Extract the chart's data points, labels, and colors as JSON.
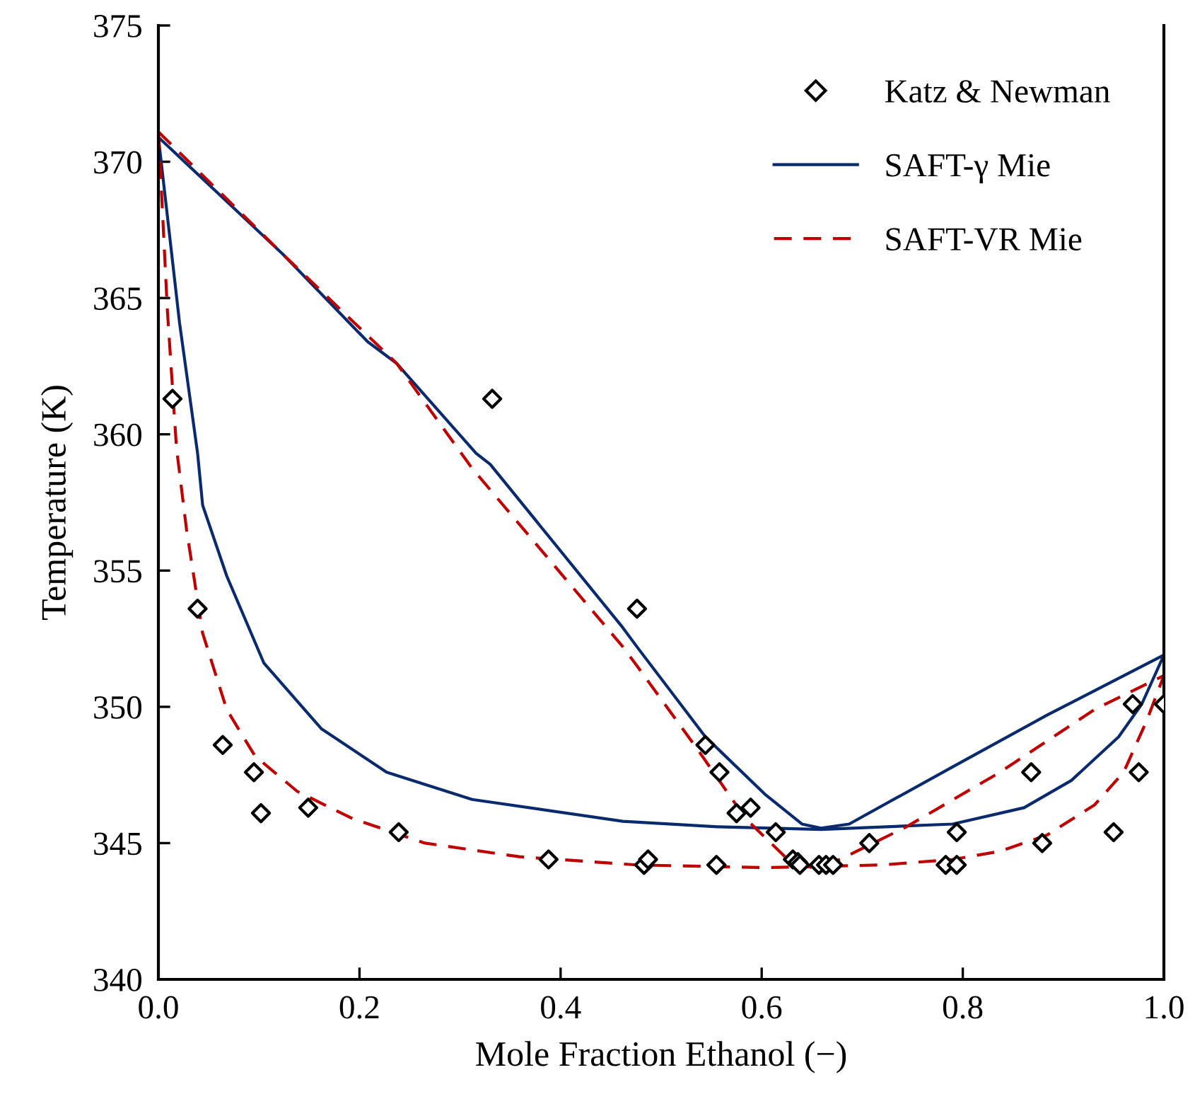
{
  "chart_data": {
    "type": "line",
    "xlabel": "Mole Fraction Ethanol (−)",
    "ylabel": "Temperature (K)",
    "xlim": [
      0.0,
      1.0
    ],
    "xticks": [
      {
        "value": 0,
        "label": "0.0"
      },
      0.2,
      0.4,
      0.6,
      0.8,
      {
        "value": 1,
        "label": "1.0"
      }
    ],
    "ylim": [
      340,
      375
    ],
    "yticks": [
      340,
      345,
      350,
      355,
      360,
      365,
      370,
      375
    ],
    "grid": false,
    "legend": "top right",
    "series": [
      {
        "name": "Katz & Newman",
        "type": "scatter",
        "marker": "diamond",
        "color": "#000000",
        "x": [
          0.014,
          0.039,
          0.064,
          0.095,
          0.102,
          0.149,
          0.239,
          0.388,
          0.332,
          0.476,
          0.544,
          0.558,
          0.575,
          0.589,
          0.614,
          0.707,
          0.794,
          0.868,
          0.879,
          0.95,
          0.975,
          0.969,
          1.0,
          0.483,
          0.487,
          0.555,
          0.631,
          0.636,
          0.638,
          0.657,
          0.664,
          0.671,
          0.783,
          0.794
        ],
        "values": [
          361.3,
          353.6,
          348.6,
          347.6,
          346.1,
          346.3,
          345.4,
          344.4,
          361.3,
          353.6,
          348.6,
          347.6,
          346.1,
          346.3,
          345.4,
          345.0,
          345.4,
          347.6,
          345.0,
          345.4,
          347.6,
          350.1,
          350.1,
          344.2,
          344.4,
          344.2,
          344.4,
          344.3,
          344.2,
          344.2,
          344.2,
          344.2,
          344.2,
          344.2
        ]
      },
      {
        "name": "SAFT-γ Mie",
        "line_style": "solid",
        "color": "#0a2a6e",
        "x": [
          0.0,
          0.124,
          0.208,
          0.237,
          0.316,
          0.33,
          0.462,
          0.476,
          0.544,
          0.603,
          0.64,
          0.659,
          0.687,
          0.79,
          0.884,
          1.0,
          null,
          0.0,
          0.021,
          0.039,
          0.044,
          0.068,
          0.105,
          0.162,
          0.227,
          0.312,
          0.462,
          0.556,
          0.659,
          0.79,
          0.861,
          0.908,
          0.955,
          0.978,
          1.0
        ],
        "values": [
          370.9,
          366.6,
          363.4,
          362.6,
          359.3,
          358.9,
          352.9,
          352.2,
          348.9,
          346.8,
          345.7,
          345.55,
          345.7,
          347.8,
          349.7,
          351.9,
          null,
          370.9,
          364.1,
          359.3,
          357.4,
          354.8,
          351.6,
          349.2,
          347.6,
          346.6,
          345.8,
          345.6,
          345.5,
          345.7,
          346.3,
          347.3,
          348.9,
          350.1,
          351.9
        ]
      },
      {
        "name": "SAFT-VR Mie",
        "line_style": "dashed",
        "color": "#c00000",
        "x": [
          0.0,
          0.124,
          0.237,
          0.312,
          0.462,
          0.476,
          0.537,
          0.584,
          0.626,
          0.65,
          0.678,
          0.744,
          0.837,
          0.931,
          1.0,
          null,
          0.0,
          0.002,
          0.009,
          0.018,
          0.028,
          0.044,
          0.068,
          0.096,
          0.138,
          0.193,
          0.265,
          0.359,
          0.476,
          0.603,
          0.72,
          0.79,
          0.837,
          0.884,
          0.931,
          0.96,
          0.983,
          1.0
        ],
        "values": [
          371.1,
          366.6,
          362.6,
          358.75,
          352.2,
          351.5,
          348.4,
          345.9,
          344.4,
          344.1,
          344.4,
          345.6,
          347.6,
          349.9,
          351.15,
          null,
          371.1,
          369.7,
          364.5,
          359.5,
          356.5,
          352.7,
          349.9,
          348.2,
          346.9,
          345.9,
          345.0,
          344.5,
          344.2,
          344.1,
          344.2,
          344.4,
          344.7,
          345.3,
          346.4,
          347.6,
          349.5,
          351.15
        ]
      }
    ]
  }
}
